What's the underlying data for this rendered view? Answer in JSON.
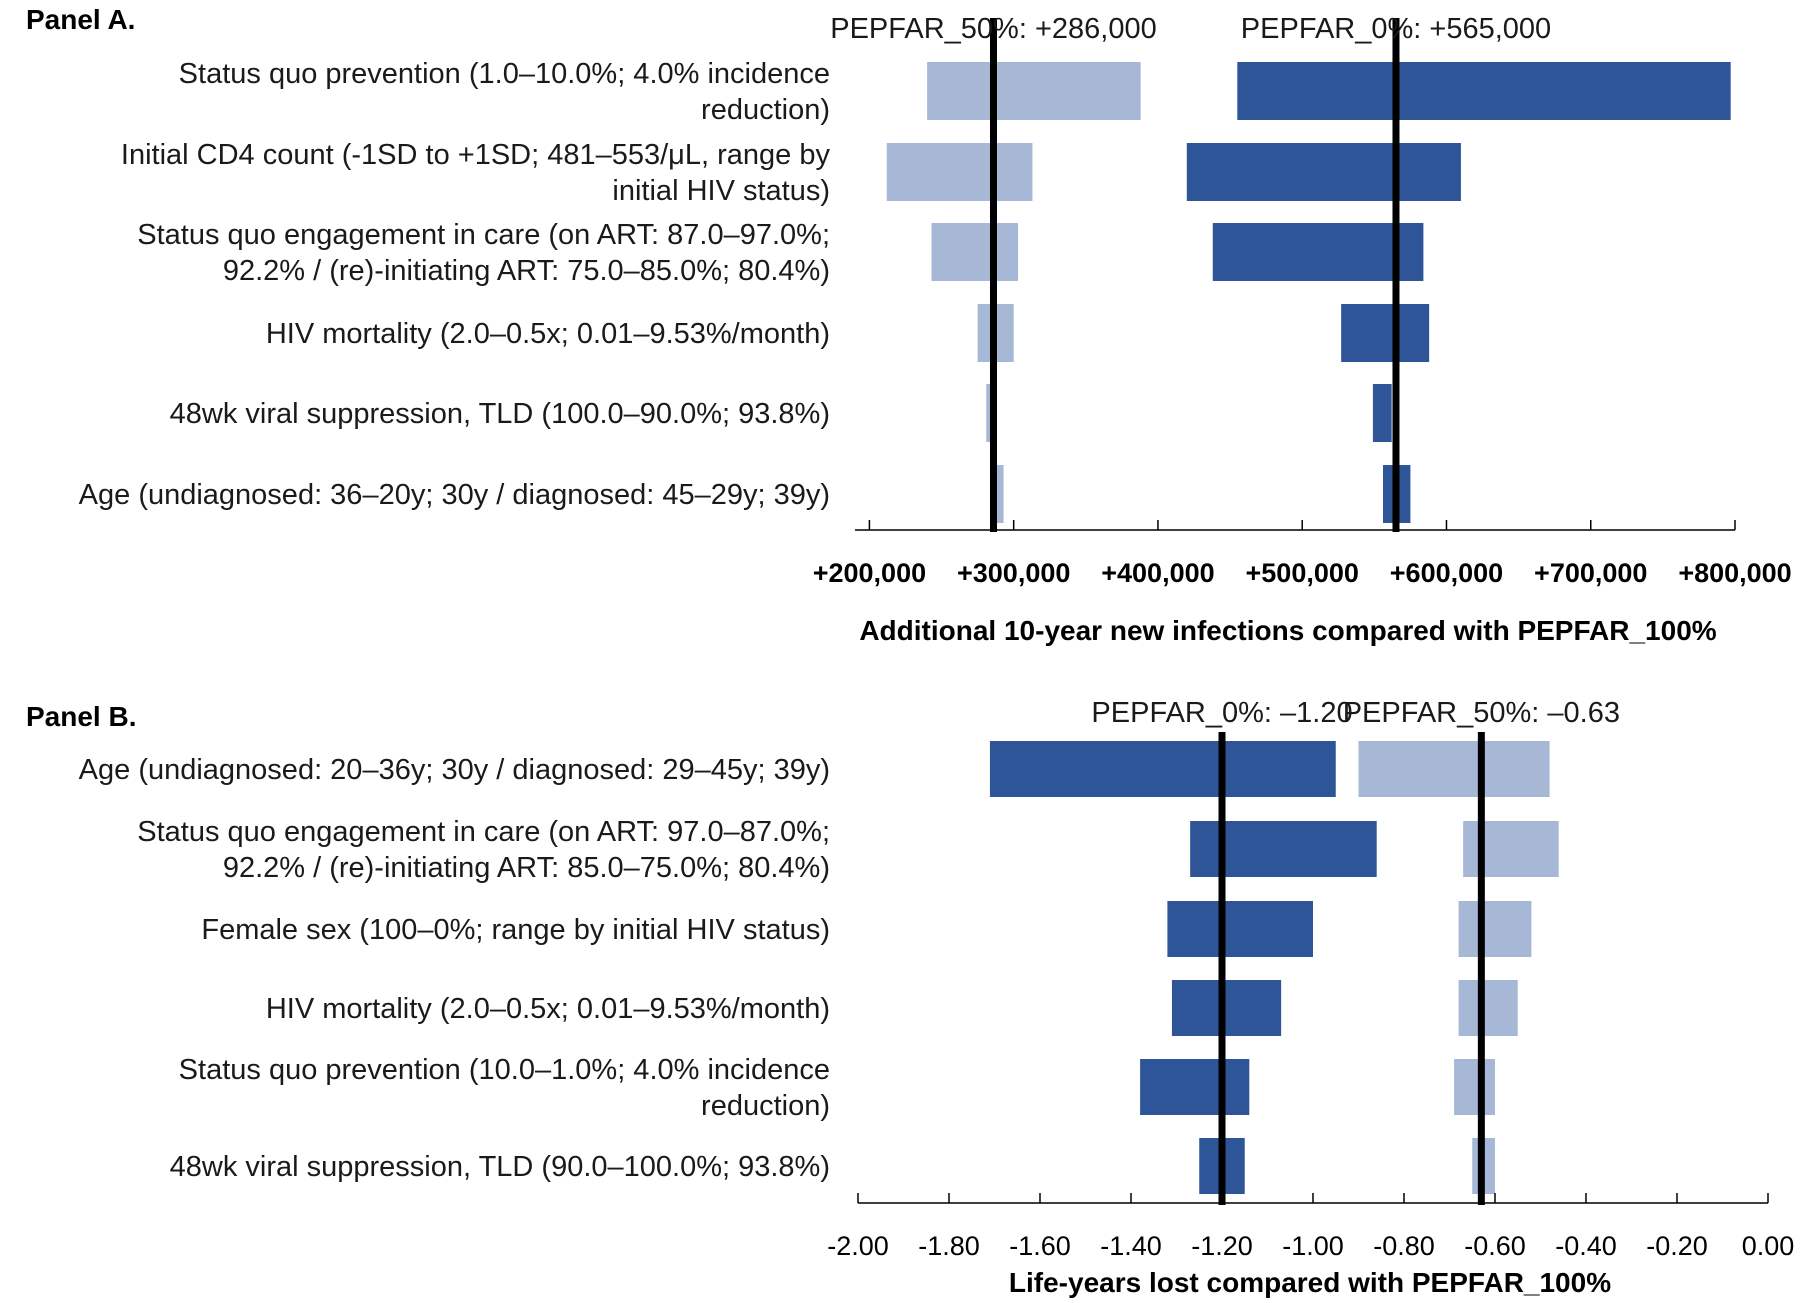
{
  "chart_data": [
    {
      "type": "bar",
      "subtype": "tornado",
      "panel_title": "Panel A.",
      "xlabel": "Additional 10-year new infections compared with PEPFAR_100%",
      "xlim": [
        190000,
        800000
      ],
      "ticks": [
        200000,
        300000,
        400000,
        500000,
        600000,
        700000,
        800000
      ],
      "tick_labels": [
        "+200,000",
        "+300,000",
        "+400,000",
        "+500,000",
        "+600,000",
        "+700,000",
        "+800,000"
      ],
      "tick_style": "bold",
      "colors": {
        "PEPFAR_50%": "#a6b8d6",
        "PEPFAR_0%": "#2e5597",
        "reference_line": "#000000"
      },
      "categories": [
        [
          "Status quo prevention (1.0–10.0%; 4.0% incidence",
          "reduction)"
        ],
        [
          "Initial CD4 count (-1SD to +1SD; 481–553/μL, range by",
          "initial HIV status)"
        ],
        [
          "Status quo engagement in care (on ART: 87.0–97.0%;",
          "92.2% / (re)-initiating ART: 75.0–85.0%; 80.4%)"
        ],
        [
          "HIV mortality (2.0–0.5x; 0.01–9.53%/month)"
        ],
        [
          "48wk viral suppression, TLD (100.0–90.0%; 93.8%)"
        ],
        [
          "Age (undiagnosed: 36–20y; 30y / diagnosed: 45–29y; 39y)"
        ]
      ],
      "series": [
        {
          "name": "PEPFAR_50%",
          "reference_label": "PEPFAR_50%: +286,000",
          "base": 286000,
          "ranges": [
            [
              240000,
              388000
            ],
            [
              212000,
              313000
            ],
            [
              243000,
              303000
            ],
            [
              275000,
              300000
            ],
            [
              281000,
              285000
            ],
            [
              284000,
              293000
            ]
          ]
        },
        {
          "name": "PEPFAR_0%",
          "reference_label": "PEPFAR_0%: +565,000",
          "base": 565000,
          "ranges": [
            [
              455000,
              797000
            ],
            [
              420000,
              610000
            ],
            [
              438000,
              584000
            ],
            [
              527000,
              588000
            ],
            [
              549000,
              562000
            ],
            [
              556000,
              575000
            ]
          ]
        }
      ]
    },
    {
      "type": "bar",
      "subtype": "tornado",
      "panel_title": "Panel B.",
      "xlabel": "Life-years lost compared with PEPFAR_100%",
      "xlim": [
        -2.0,
        0.0
      ],
      "ticks": [
        -2.0,
        -1.8,
        -1.6,
        -1.4,
        -1.2,
        -1.0,
        -0.8,
        -0.6,
        -0.4,
        -0.2,
        0.0
      ],
      "tick_labels": [
        "-2.00",
        "-1.80",
        "-1.60",
        "-1.40",
        "-1.20",
        "-1.00",
        "-0.80",
        "-0.60",
        "-0.40",
        "-0.20",
        "0.00"
      ],
      "tick_style": "normal",
      "colors": {
        "PEPFAR_0%": "#2e5597",
        "PEPFAR_50%": "#a6b8d6",
        "reference_line": "#000000"
      },
      "categories": [
        [
          "Age (undiagnosed: 20–36y; 30y / diagnosed: 29–45y; 39y)"
        ],
        [
          "Status quo engagement in care (on ART: 97.0–87.0%;",
          "92.2% / (re)-initiating ART: 85.0–75.0%; 80.4%)"
        ],
        [
          "Female sex (100–0%; range by initial HIV status)"
        ],
        [
          "HIV mortality (2.0–0.5x; 0.01–9.53%/month)"
        ],
        [
          "Status quo prevention (10.0–1.0%; 4.0% incidence",
          "reduction)"
        ],
        [
          "48wk viral suppression, TLD (90.0–100.0%; 93.8%)"
        ]
      ],
      "series": [
        {
          "name": "PEPFAR_0%",
          "reference_label": "PEPFAR_0%: –1.20",
          "base": -1.2,
          "ranges": [
            [
              -1.71,
              -0.95
            ],
            [
              -1.27,
              -0.86
            ],
            [
              -1.32,
              -1.0
            ],
            [
              -1.31,
              -1.07
            ],
            [
              -1.38,
              -1.14
            ],
            [
              -1.25,
              -1.15
            ]
          ]
        },
        {
          "name": "PEPFAR_50%",
          "reference_label": "PEPFAR_50%: –0.63",
          "base": -0.63,
          "ranges": [
            [
              -0.9,
              -0.48
            ],
            [
              -0.67,
              -0.46
            ],
            [
              -0.68,
              -0.52
            ],
            [
              -0.68,
              -0.55
            ],
            [
              -0.69,
              -0.6
            ],
            [
              -0.65,
              -0.6
            ]
          ]
        }
      ]
    }
  ]
}
